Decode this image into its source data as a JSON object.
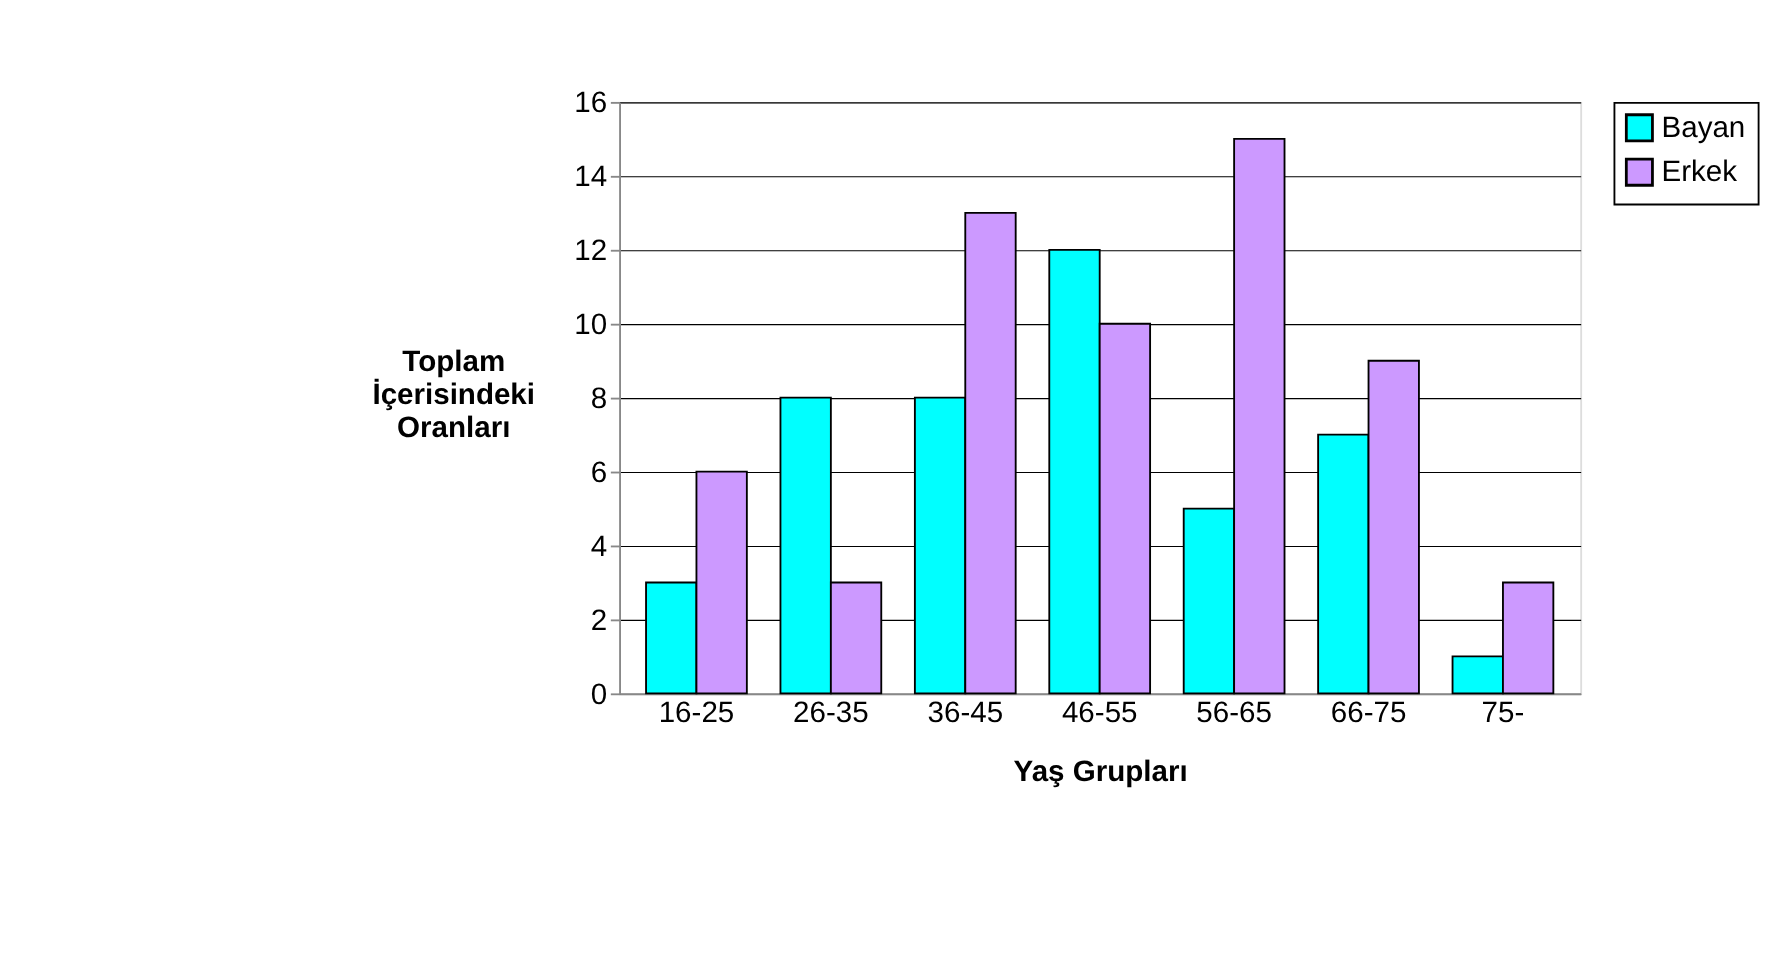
{
  "chart_data": {
    "type": "bar",
    "categories": [
      "16-25",
      "26-35",
      "36-45",
      "46-55",
      "56-65",
      "66-75",
      "75-"
    ],
    "series": [
      {
        "name": "Bayan",
        "color": "#00ffff",
        "values": [
          3,
          8,
          8,
          12,
          5,
          7,
          1
        ]
      },
      {
        "name": "Erkek",
        "color": "#cc99ff",
        "values": [
          6,
          3,
          13,
          10,
          15,
          9,
          3
        ]
      }
    ],
    "xlabel": "Yaş Grupları",
    "ylabel": "Toplam\nİçerisindeki\nOranları",
    "ylim": [
      0,
      16
    ],
    "yticks": [
      0,
      2,
      4,
      6,
      8,
      10,
      12,
      14,
      16
    ],
    "grid": "y",
    "legend": "right"
  }
}
